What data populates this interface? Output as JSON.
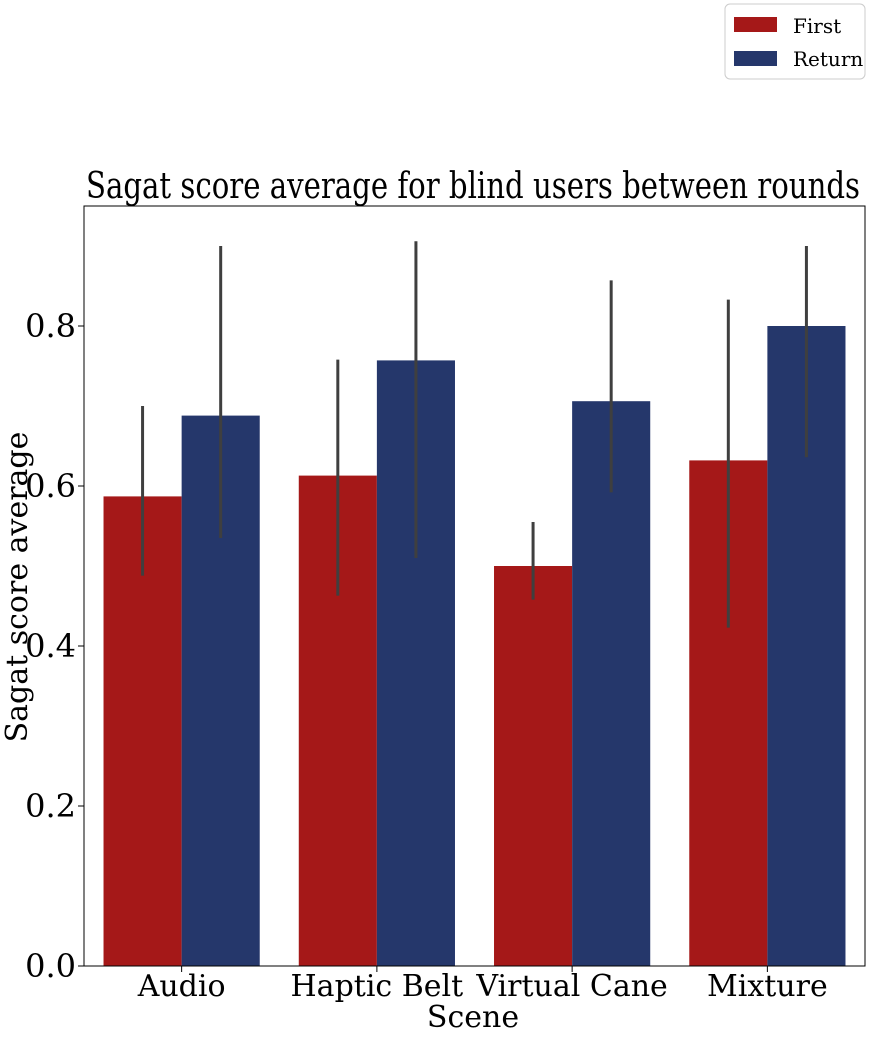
{
  "chart_data": {
    "type": "bar",
    "title": "Sagat score average for blind users between rounds",
    "xlabel": "Scene",
    "ylabel": "Sagat score average",
    "categories": [
      "Audio",
      "Haptic Belt",
      "Virtual Cane",
      "Mixture"
    ],
    "ylim": [
      0,
      0.95
    ],
    "yticks": [
      0.0,
      0.2,
      0.4,
      0.6,
      0.8
    ],
    "ytick_labels": [
      "0.0",
      "0.2",
      "0.4",
      "0.6",
      "0.8"
    ],
    "legend_position": "top-right",
    "grid": false,
    "series": [
      {
        "name": "First",
        "color": "#a51818",
        "values": [
          0.587,
          0.613,
          0.5,
          0.632
        ],
        "error_low": [
          0.488,
          0.463,
          0.458,
          0.423
        ],
        "error_high": [
          0.7,
          0.758,
          0.555,
          0.833
        ]
      },
      {
        "name": "Return",
        "color": "#25376b",
        "values": [
          0.688,
          0.757,
          0.706,
          0.8
        ],
        "error_low": [
          0.535,
          0.51,
          0.592,
          0.636
        ],
        "error_high": [
          0.9,
          0.906,
          0.857,
          0.9
        ]
      }
    ]
  }
}
